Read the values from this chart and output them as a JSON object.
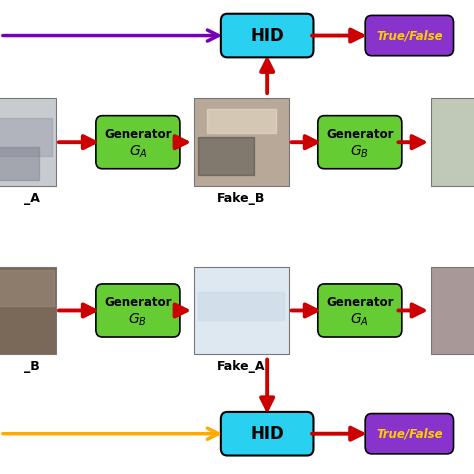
{
  "bg_color": "#ffffff",
  "hid_box_color": "#29d0f0",
  "hid_text_color": "#000000",
  "gen_box_color": "#66cc33",
  "gen_text_color": "#000000",
  "true_false_box_color": "#8833cc",
  "true_false_text_color": "#ffcc00",
  "top_arrow_color": "#7700bb",
  "bottom_arrow_color": "#ffaa00",
  "red_arrow_color": "#cc0000",
  "top_hid_label": "HID",
  "bottom_hid_label": "HID",
  "true_false_label": "True/False",
  "gen_A_label": "Generator",
  "gen_A_sub": "$G_A$",
  "gen_B_label": "Generator",
  "gen_B_sub": "$G_B$",
  "fake_b_label": "Fake_B",
  "fake_a_label": "Fake_A",
  "real_a_label": "_A",
  "real_b_label": "_B",
  "img_left_top_color": "#c8ccd0",
  "img_center_top_color": "#b8a898",
  "img_right_top_color": "#c0c8b8",
  "img_left_bottom_color": "#7a6858",
  "img_center_bottom_color": "#dde8f0",
  "img_right_bottom_color": "#a89898"
}
